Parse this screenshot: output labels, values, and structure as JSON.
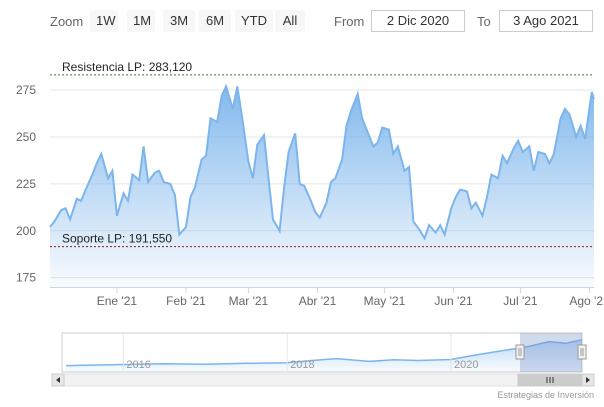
{
  "toolbar": {
    "zoom_label": "Zoom",
    "zoom_buttons": [
      "1W",
      "1M",
      "3M",
      "6M",
      "YTD",
      "All"
    ],
    "from_label": "From",
    "from_value": "2 Dic 2020",
    "to_label": "To",
    "to_value": "3 Ago 2021"
  },
  "chart_data": {
    "type": "area",
    "title": "",
    "xlabel": "",
    "ylabel": "",
    "ylim": [
      170,
      290
    ],
    "xlim": [
      "2020-12-02",
      "2021-08-03"
    ],
    "y_ticks": [
      175,
      200,
      225,
      250,
      275
    ],
    "x_tick_labels": [
      {
        "date": "2021-01-01",
        "label": "Ene '21"
      },
      {
        "date": "2021-02-01",
        "label": "Feb '21"
      },
      {
        "date": "2021-03-01",
        "label": "Mar '21"
      },
      {
        "date": "2021-04-01",
        "label": "Abr '21"
      },
      {
        "date": "2021-05-01",
        "label": "May '21"
      },
      {
        "date": "2021-06-01",
        "label": "Jun '21"
      },
      {
        "date": "2021-07-01",
        "label": "Jul '21"
      },
      {
        "date": "2021-08-01",
        "label": "Ago '21"
      }
    ],
    "grid": true,
    "series": [
      {
        "color": "#7cb5ec",
        "x": [
          "2020-12-02",
          "2020-12-04",
          "2020-12-07",
          "2020-12-09",
          "2020-12-11",
          "2020-12-14",
          "2020-12-16",
          "2020-12-18",
          "2020-12-21",
          "2020-12-23",
          "2020-12-25",
          "2020-12-28",
          "2020-12-30",
          "2021-01-01",
          "2021-01-04",
          "2021-01-06",
          "2021-01-08",
          "2021-01-11",
          "2021-01-13",
          "2021-01-15",
          "2021-01-18",
          "2021-01-20",
          "2021-01-22",
          "2021-01-25",
          "2021-01-27",
          "2021-01-29",
          "2021-02-01",
          "2021-02-03",
          "2021-02-05",
          "2021-02-08",
          "2021-02-10",
          "2021-02-12",
          "2021-02-15",
          "2021-02-17",
          "2021-02-19",
          "2021-02-22",
          "2021-02-24",
          "2021-02-26",
          "2021-03-01",
          "2021-03-03",
          "2021-03-05",
          "2021-03-08",
          "2021-03-10",
          "2021-03-12",
          "2021-03-15",
          "2021-03-17",
          "2021-03-19",
          "2021-03-22",
          "2021-03-24",
          "2021-03-26",
          "2021-03-29",
          "2021-03-31",
          "2021-04-02",
          "2021-04-05",
          "2021-04-07",
          "2021-04-09",
          "2021-04-12",
          "2021-04-14",
          "2021-04-16",
          "2021-04-19",
          "2021-04-21",
          "2021-04-23",
          "2021-04-26",
          "2021-04-28",
          "2021-04-30",
          "2021-05-03",
          "2021-05-05",
          "2021-05-07",
          "2021-05-10",
          "2021-05-12",
          "2021-05-14",
          "2021-05-17",
          "2021-05-19",
          "2021-05-21",
          "2021-05-24",
          "2021-05-26",
          "2021-05-28",
          "2021-05-31",
          "2021-06-02",
          "2021-06-04",
          "2021-06-07",
          "2021-06-09",
          "2021-06-11",
          "2021-06-14",
          "2021-06-16",
          "2021-06-18",
          "2021-06-21",
          "2021-06-23",
          "2021-06-25",
          "2021-06-28",
          "2021-06-30",
          "2021-07-02",
          "2021-07-05",
          "2021-07-07",
          "2021-07-09",
          "2021-07-12",
          "2021-07-14",
          "2021-07-16",
          "2021-07-19",
          "2021-07-21",
          "2021-07-23",
          "2021-07-26",
          "2021-07-28",
          "2021-07-30",
          "2021-08-02",
          "2021-08-03"
        ],
        "y": [
          202,
          205,
          211,
          212,
          206,
          217,
          216,
          222,
          230,
          236,
          241,
          228,
          232,
          208,
          220,
          216,
          230,
          227,
          245,
          226,
          231,
          232,
          226,
          225,
          219,
          198,
          202,
          218,
          223,
          238,
          240,
          260,
          258,
          272,
          277,
          265,
          277,
          262,
          237,
          228,
          246,
          251,
          228,
          206,
          200,
          223,
          242,
          252,
          225,
          224,
          216,
          210,
          207,
          215,
          226,
          228,
          238,
          256,
          264,
          273,
          260,
          254,
          245,
          247,
          255,
          254,
          241,
          245,
          232,
          234,
          205,
          200,
          196,
          203,
          199,
          203,
          198,
          212,
          218,
          222,
          221,
          212,
          215,
          208,
          218,
          230,
          228,
          240,
          236,
          244,
          248,
          242,
          245,
          232,
          242,
          241,
          236,
          241,
          260,
          265,
          262,
          250,
          256,
          249,
          274,
          270
        ]
      }
    ],
    "plot_lines": [
      {
        "value": 283.12,
        "label": "Resistencia LP: 283,120",
        "color": "#2f7a2f"
      },
      {
        "value": 191.55,
        "label": "Soporte LP: 191,550",
        "color": "#8b1a1a"
      }
    ],
    "navigator": {
      "x_tick_labels": [
        "2016",
        "2018",
        "2020"
      ],
      "series": [
        {
          "year": 2015.3,
          "value": 160
        },
        {
          "year": 2016.0,
          "value": 165
        },
        {
          "year": 2016.5,
          "value": 168
        },
        {
          "year": 2017.0,
          "value": 166
        },
        {
          "year": 2017.5,
          "value": 170
        },
        {
          "year": 2018.0,
          "value": 172
        },
        {
          "year": 2018.3,
          "value": 182
        },
        {
          "year": 2018.6,
          "value": 190
        },
        {
          "year": 2019.0,
          "value": 178
        },
        {
          "year": 2019.3,
          "value": 185
        },
        {
          "year": 2019.6,
          "value": 182
        },
        {
          "year": 2020.0,
          "value": 186
        },
        {
          "year": 2020.3,
          "value": 205
        },
        {
          "year": 2020.6,
          "value": 222
        },
        {
          "year": 2020.9,
          "value": 238
        },
        {
          "year": 2021.2,
          "value": 262
        },
        {
          "year": 2021.4,
          "value": 255
        },
        {
          "year": 2021.6,
          "value": 270
        }
      ]
    }
  },
  "credit": "Estrategias de Inversión"
}
